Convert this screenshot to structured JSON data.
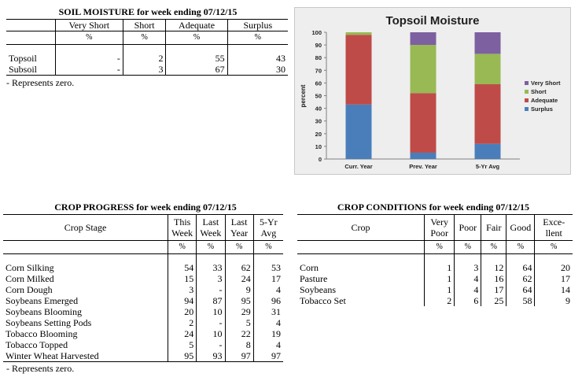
{
  "soil_moisture": {
    "title": "SOIL MOISTURE for week ending 07/12/15",
    "headers": [
      "Very Short",
      "Short",
      "Adequate",
      "Surplus"
    ],
    "units": [
      "%",
      "%",
      "%",
      "%"
    ],
    "rows": [
      {
        "label": "Topsoil",
        "values": [
          "-",
          "2",
          "55",
          "43"
        ]
      },
      {
        "label": "Subsoil",
        "values": [
          "-",
          "3",
          "67",
          "30"
        ]
      }
    ],
    "note": "- Represents zero."
  },
  "crop_progress": {
    "title": "CROP PROGRESS for week ending 07/12/15",
    "stage_header": "Crop Stage",
    "headers": [
      [
        "This",
        "Week"
      ],
      [
        "Last",
        "Week"
      ],
      [
        "Last",
        "Year"
      ],
      [
        "5-Yr",
        "Avg"
      ]
    ],
    "units": [
      "%",
      "%",
      "%",
      "%"
    ],
    "rows": [
      {
        "label": "Corn Silking",
        "values": [
          "54",
          "33",
          "62",
          "53"
        ]
      },
      {
        "label": "Corn Milked",
        "values": [
          "15",
          "3",
          "24",
          "17"
        ]
      },
      {
        "label": "Corn Dough",
        "values": [
          "3",
          "-",
          "9",
          "4"
        ]
      },
      {
        "label": "Soybeans Emerged",
        "values": [
          "94",
          "87",
          "95",
          "96"
        ]
      },
      {
        "label": "Soybeans Blooming",
        "values": [
          "20",
          "10",
          "29",
          "31"
        ]
      },
      {
        "label": "Soybeans Setting Pods",
        "values": [
          "2",
          "-",
          "5",
          "4"
        ]
      },
      {
        "label": "Tobacco Blooming",
        "values": [
          "24",
          "10",
          "22",
          "19"
        ]
      },
      {
        "label": "Tobacco Topped",
        "values": [
          "5",
          "-",
          "8",
          "4"
        ]
      },
      {
        "label": "Winter Wheat Harvested",
        "values": [
          "95",
          "93",
          "97",
          "97"
        ]
      }
    ],
    "note": "- Represents zero."
  },
  "crop_conditions": {
    "title": "CROP CONDITIONS for week ending 07/12/15",
    "crop_header": "Crop",
    "headers": [
      [
        "Very",
        "Poor"
      ],
      [
        "Poor"
      ],
      [
        "Fair"
      ],
      [
        "Good"
      ],
      [
        "Exce-",
        "llent"
      ]
    ],
    "units": [
      "%",
      "%",
      "%",
      "%",
      "%"
    ],
    "rows": [
      {
        "label": "Corn",
        "values": [
          "1",
          "3",
          "12",
          "64",
          "20"
        ]
      },
      {
        "label": "Pasture",
        "values": [
          "1",
          "4",
          "16",
          "62",
          "17"
        ]
      },
      {
        "label": "Soybeans",
        "values": [
          "1",
          "4",
          "17",
          "64",
          "14"
        ]
      },
      {
        "label": "Tobacco Set",
        "values": [
          "2",
          "6",
          "25",
          "58",
          "9"
        ]
      }
    ]
  },
  "chart_data": {
    "type": "bar",
    "stacked": true,
    "title": "Topsoil Moisture",
    "ylabel": "percent",
    "xlabel": "",
    "ylim": [
      0,
      100
    ],
    "yticks": [
      0,
      10,
      20,
      30,
      40,
      50,
      60,
      70,
      80,
      90,
      100
    ],
    "categories": [
      "Curr. Year",
      "Prev. Year",
      "5-Yr Avg"
    ],
    "series": [
      {
        "name": "Surplus",
        "color": "#4a7ebb",
        "values": [
          43,
          5,
          12
        ]
      },
      {
        "name": "Adequate",
        "color": "#be4b48",
        "values": [
          55,
          47,
          47
        ]
      },
      {
        "name": "Short",
        "color": "#98b954",
        "values": [
          2,
          38,
          24
        ]
      },
      {
        "name": "Very Short",
        "color": "#7d60a0",
        "values": [
          0,
          10,
          17
        ]
      }
    ],
    "legend": [
      "Very Short",
      "Short",
      "Adequate",
      "Surplus"
    ],
    "legend_position": "right",
    "grid": false
  }
}
